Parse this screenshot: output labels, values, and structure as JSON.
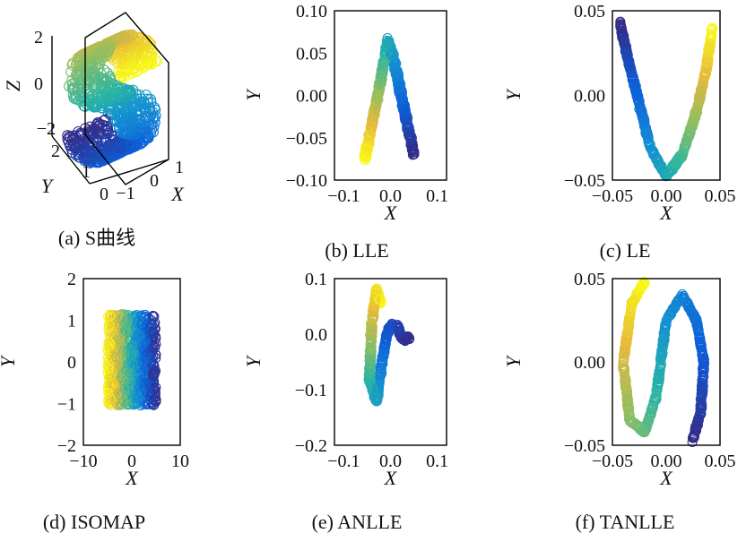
{
  "figure": {
    "panels": [
      {
        "id": "a",
        "caption": "(a) S曲线",
        "type": "scatter3d",
        "axes": {
          "z_label": "Z",
          "y_label": "Y",
          "x_label": "X",
          "z_ticks": [
            "2",
            "0",
            "−2"
          ],
          "y_ticks": [
            "2",
            "1",
            "0"
          ],
          "x_ticks": [
            "−1",
            "0",
            "1"
          ]
        }
      },
      {
        "id": "b",
        "caption": "(b) LLE",
        "type": "scatter",
        "xlabel": "X",
        "ylabel": "Y",
        "xticks": [
          "−0.1",
          "0.0",
          "0.1"
        ],
        "yticks": [
          "0.10",
          "0.05",
          "0.00",
          "−0.05",
          "−0.10"
        ]
      },
      {
        "id": "c",
        "caption": "(c) LE",
        "type": "scatter",
        "xlabel": "X",
        "ylabel": "Y",
        "xticks": [
          "−0.05",
          "0.00",
          "0.05"
        ],
        "yticks": [
          "0.05",
          "0.00",
          "−0.05"
        ]
      },
      {
        "id": "d",
        "caption": "(d) ISOMAP",
        "type": "scatter",
        "xlabel": "X",
        "ylabel": "Y",
        "xticks": [
          "−10",
          "0",
          "10"
        ],
        "yticks": [
          "2",
          "1",
          "0",
          "−1",
          "−2"
        ]
      },
      {
        "id": "e",
        "caption": "(e) ANLLE",
        "type": "scatter",
        "xlabel": "X",
        "ylabel": "Y",
        "xticks": [
          "−0.1",
          "0.0",
          "0.1"
        ],
        "yticks": [
          "0.1",
          "0.0",
          "−0.1",
          "−0.2"
        ]
      },
      {
        "id": "f",
        "caption": "(f) TANLLE",
        "type": "scatter",
        "xlabel": "X",
        "ylabel": "Y",
        "xticks": [
          "−0.05",
          "0.00",
          "0.05"
        ],
        "yticks": [
          "0.05",
          "0.00",
          "−0.05"
        ]
      }
    ]
  },
  "chart_data": [
    {
      "type": "scatter",
      "title": "(a) S曲线",
      "projection": "3d",
      "marker": "open-circle",
      "colormap": "parula",
      "xlim": [
        -1,
        1
      ],
      "ylim": [
        0,
        2
      ],
      "zlim": [
        -2,
        2
      ],
      "xlabel": "X",
      "ylabel": "Y",
      "zlabel": "Z",
      "curve": "S-curve manifold: x = sin(t), z = sign(t)(cos(t) − 1), t from −1.5π to 1.5π, y in [0, 2]; color follows t"
    },
    {
      "type": "scatter",
      "title": "(b) LLE",
      "marker": "open-circle",
      "colormap": "parula",
      "xlabel": "X",
      "ylabel": "Y",
      "xlim": [
        -0.13,
        0.12
      ],
      "ylim": [
        -0.1,
        0.1
      ],
      "path": {
        "x": [
          -0.055,
          -0.04,
          -0.02,
          -0.005,
          0.01,
          0.025,
          0.04,
          0.05
        ],
        "y": [
          -0.075,
          -0.035,
          0.02,
          0.065,
          0.035,
          -0.005,
          -0.045,
          -0.068
        ]
      },
      "color_range": [
        "yellow",
        "dark-blue"
      ]
    },
    {
      "type": "scatter",
      "title": "(c) LE",
      "marker": "open-circle",
      "colormap": "parula",
      "xlabel": "X",
      "ylabel": "Y",
      "xlim": [
        -0.05,
        0.05
      ],
      "ylim": [
        -0.05,
        0.05
      ],
      "path": {
        "x": [
          -0.043,
          -0.035,
          -0.025,
          -0.015,
          0.0,
          0.015,
          0.028,
          0.037,
          0.043
        ],
        "y": [
          0.043,
          0.02,
          -0.005,
          -0.03,
          -0.048,
          -0.035,
          -0.01,
          0.015,
          0.04
        ]
      },
      "color_range": [
        "dark-blue",
        "yellow"
      ]
    },
    {
      "type": "scatter",
      "title": "(d) ISOMAP",
      "marker": "open-circle",
      "colormap": "parula",
      "xlabel": "X",
      "ylabel": "Y",
      "xlim": [
        -10,
        10
      ],
      "ylim": [
        -2,
        2
      ],
      "region": {
        "x": [
          -5,
          5
        ],
        "y": [
          -1.1,
          1.2
        ]
      },
      "color_range": [
        "yellow",
        "dark-blue"
      ]
    },
    {
      "type": "scatter",
      "title": "(e) ANLLE",
      "marker": "open-circle",
      "colormap": "parula",
      "xlabel": "X",
      "ylabel": "Y",
      "xlim": [
        -0.12,
        0.12
      ],
      "ylim": [
        -0.2,
        0.1
      ],
      "path": {
        "x": [
          -0.02,
          -0.03,
          -0.04,
          -0.045,
          -0.03,
          -0.018,
          -0.008,
          0.0,
          0.015,
          0.02,
          0.03,
          0.04
        ],
        "y": [
          0.055,
          0.08,
          0.02,
          -0.08,
          -0.12,
          -0.05,
          0.0,
          0.015,
          0.015,
          0.0,
          -0.01,
          -0.005
        ]
      },
      "color_range": [
        "yellow",
        "dark-blue"
      ]
    },
    {
      "type": "scatter",
      "title": "(f) TANLLE",
      "marker": "open-circle",
      "colormap": "parula",
      "xlabel": "X",
      "ylabel": "Y",
      "xlim": [
        -0.05,
        0.05
      ],
      "ylim": [
        -0.05,
        0.05
      ],
      "path": {
        "x": [
          -0.02,
          -0.032,
          -0.04,
          -0.034,
          -0.02,
          -0.009,
          -0.005,
          0.0,
          0.015,
          0.028,
          0.035,
          0.032,
          0.024
        ],
        "y": [
          0.048,
          0.035,
          0.0,
          -0.035,
          -0.042,
          -0.02,
          0.0,
          0.025,
          0.04,
          0.025,
          0.0,
          -0.03,
          -0.048
        ]
      },
      "color_range": [
        "yellow",
        "dark-blue"
      ]
    }
  ]
}
